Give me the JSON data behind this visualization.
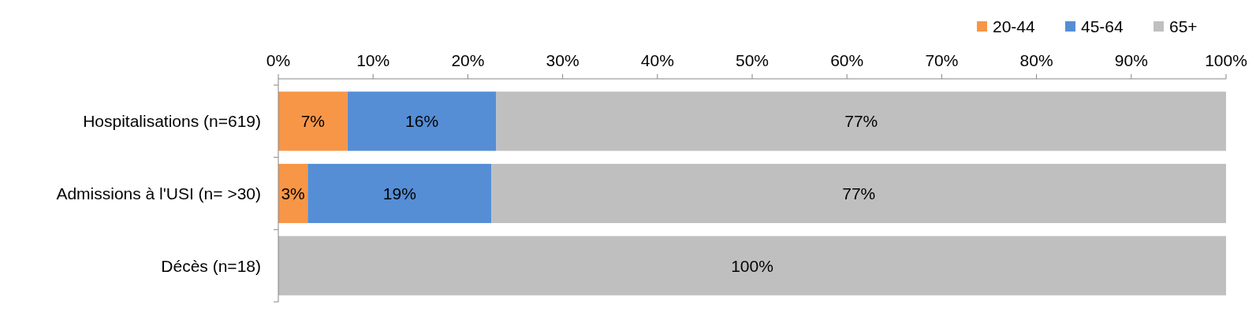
{
  "chart_data": {
    "type": "bar",
    "orientation": "horizontal",
    "stacked": true,
    "categories": [
      "Hospitalisations (n=619)",
      "Admissions à l'USI (n= >30)",
      "Décès (n=18)"
    ],
    "series": [
      {
        "name": "20-44",
        "color": "#f79646",
        "values": [
          7.3,
          3.1,
          0
        ],
        "value_labels": [
          "7%",
          "3%",
          null
        ]
      },
      {
        "name": "45-64",
        "color": "#558ed5",
        "values": [
          15.7,
          19.4,
          0
        ],
        "value_labels": [
          "16%",
          "19%",
          null
        ]
      },
      {
        "name": "65+",
        "color": "#bfbfbf",
        "values": [
          77,
          77.5,
          100
        ],
        "value_labels": [
          "77%",
          "77%",
          "100%"
        ]
      }
    ],
    "xlim": [
      0,
      100
    ],
    "xticks": [
      {
        "value": 0,
        "label": "0%"
      },
      {
        "value": 10,
        "label": "10%"
      },
      {
        "value": 20,
        "label": "20%"
      },
      {
        "value": 30,
        "label": "30%"
      },
      {
        "value": 40,
        "label": "40%"
      },
      {
        "value": 50,
        "label": "50%"
      },
      {
        "value": 60,
        "label": "60%"
      },
      {
        "value": 70,
        "label": "70%"
      },
      {
        "value": 80,
        "label": "80%"
      },
      {
        "value": 90,
        "label": "90%"
      },
      {
        "value": 100,
        "label": "100%"
      }
    ],
    "grid": false,
    "legend": "top right"
  }
}
